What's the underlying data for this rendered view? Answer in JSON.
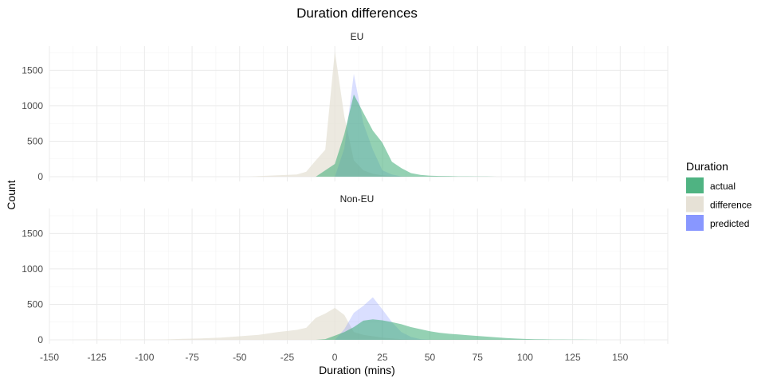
{
  "chart_data": {
    "type": "area",
    "title": "Duration differences",
    "xlabel": "Duration (mins)",
    "ylabel": "Count",
    "xlim": [
      -150,
      175
    ],
    "ylim": [
      0,
      1800
    ],
    "x_ticks": [
      -150,
      -125,
      -100,
      -75,
      -50,
      -25,
      0,
      25,
      50,
      75,
      100,
      125,
      150
    ],
    "y_ticks": [
      0,
      500,
      1000,
      1500
    ],
    "grid": true,
    "legend": {
      "title": "Duration",
      "position": "right",
      "entries": [
        {
          "name": "actual",
          "color": "#3cab74"
        },
        {
          "name": "difference",
          "color": "#e6e1d6"
        },
        {
          "name": "predicted",
          "color": "#7b8cff"
        }
      ]
    },
    "panels": [
      {
        "label": "EU",
        "series": [
          {
            "name": "difference",
            "color": "#e6e1d6",
            "x": [
              -45,
              -40,
              -35,
              -30,
              -25,
              -20,
              -15,
              -10,
              -5,
              0,
              5,
              10,
              15,
              20,
              25,
              30,
              35,
              40,
              45
            ],
            "y": [
              0,
              8,
              15,
              20,
              25,
              30,
              70,
              230,
              380,
              1770,
              850,
              230,
              90,
              40,
              20,
              10,
              5,
              2,
              0
            ]
          },
          {
            "name": "predicted",
            "color": "#7b8cff",
            "x": [
              0,
              5,
              10,
              15,
              20,
              25,
              30,
              35,
              40
            ],
            "y": [
              0,
              400,
              1450,
              750,
              380,
              90,
              30,
              5,
              0
            ]
          },
          {
            "name": "actual",
            "color": "#3cab74",
            "x": [
              -10,
              0,
              5,
              10,
              15,
              20,
              25,
              30,
              35,
              40,
              45,
              50,
              55,
              60,
              65,
              70,
              75,
              80,
              85
            ],
            "y": [
              0,
              180,
              600,
              1160,
              900,
              650,
              480,
              210,
              120,
              50,
              25,
              15,
              10,
              8,
              5,
              5,
              3,
              2,
              0
            ]
          }
        ]
      },
      {
        "label": "Non-EU",
        "series": [
          {
            "name": "difference",
            "color": "#e6e1d6",
            "x": [
              -140,
              -130,
              -120,
              -110,
              -100,
              -90,
              -80,
              -70,
              -60,
              -50,
              -40,
              -30,
              -20,
              -15,
              -10,
              -5,
              0,
              5,
              10,
              15,
              20,
              25,
              30,
              35,
              40,
              45,
              50
            ],
            "y": [
              0,
              2,
              5,
              3,
              2,
              5,
              15,
              20,
              30,
              50,
              70,
              110,
              140,
              170,
              310,
              370,
              450,
              350,
              110,
              70,
              50,
              30,
              20,
              10,
              5,
              2,
              0
            ]
          },
          {
            "name": "predicted",
            "color": "#7b8cff",
            "x": [
              0,
              5,
              10,
              15,
              20,
              25,
              30,
              35,
              40,
              45,
              50
            ],
            "y": [
              0,
              150,
              380,
              480,
              600,
              430,
              250,
              110,
              40,
              10,
              0
            ]
          },
          {
            "name": "actual",
            "color": "#3cab74",
            "x": [
              -10,
              -5,
              0,
              5,
              10,
              15,
              20,
              25,
              30,
              35,
              40,
              45,
              50,
              55,
              60,
              65,
              70,
              75,
              80,
              85,
              90,
              95,
              100,
              105,
              110,
              115,
              120,
              125,
              130,
              135,
              140
            ],
            "y": [
              0,
              10,
              60,
              110,
              180,
              270,
              290,
              275,
              250,
              220,
              180,
              150,
              120,
              100,
              85,
              75,
              65,
              55,
              45,
              35,
              25,
              18,
              12,
              9,
              7,
              5,
              4,
              3,
              2,
              1,
              0
            ]
          }
        ]
      }
    ]
  }
}
